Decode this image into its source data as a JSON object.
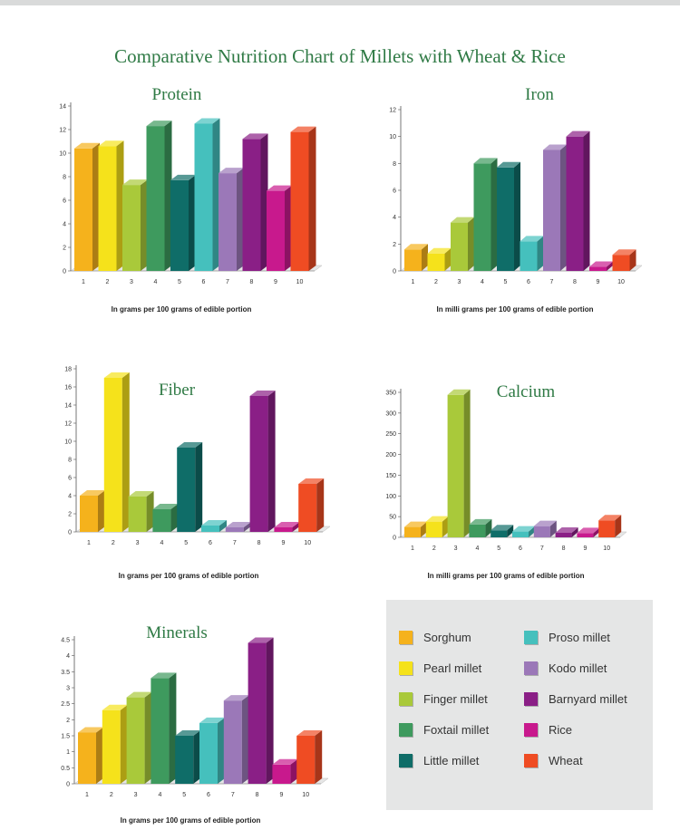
{
  "title": "Comparative Nutrition Chart of Millets with Wheat & Rice",
  "colors": [
    "#f5b21c",
    "#f5e21b",
    "#a9c93a",
    "#3e9a5e",
    "#0f6d68",
    "#45c0bd",
    "#9b78b8",
    "#8a1f86",
    "#c8198d",
    "#ef4c23"
  ],
  "legend": [
    {
      "label": "Sorghum",
      "color": "#f5b21c"
    },
    {
      "label": "Pearl millet",
      "color": "#f5e21b"
    },
    {
      "label": "Finger millet",
      "color": "#a9c93a"
    },
    {
      "label": "Foxtail millet",
      "color": "#3e9a5e"
    },
    {
      "label": "Little millet",
      "color": "#0f6d68"
    },
    {
      "label": "Proso millet",
      "color": "#45c0bd"
    },
    {
      "label": "Kodo millet",
      "color": "#9b78b8"
    },
    {
      "label": "Barnyard millet",
      "color": "#8a1f86"
    },
    {
      "label": "Rice",
      "color": "#c8198d"
    },
    {
      "label": "Wheat",
      "color": "#ef4c23"
    }
  ],
  "chart_data": [
    {
      "id": "protein",
      "type": "bar",
      "title": "Protein",
      "categories": [
        "1",
        "2",
        "3",
        "4",
        "5",
        "6",
        "7",
        "8",
        "9",
        "10"
      ],
      "values": [
        10.4,
        10.6,
        7.3,
        12.3,
        7.7,
        12.5,
        8.3,
        11.2,
        6.8,
        11.8
      ],
      "ylim": [
        0,
        14
      ],
      "yticks": [
        0,
        2,
        4,
        6,
        8,
        10,
        12,
        14
      ],
      "xlabel": "In grams per 100 grams of edible portion",
      "ylabel": ""
    },
    {
      "id": "iron",
      "type": "bar",
      "title": "Iron",
      "categories": [
        "1",
        "2",
        "3",
        "4",
        "5",
        "6",
        "7",
        "8",
        "9",
        "10"
      ],
      "values": [
        1.6,
        1.3,
        3.6,
        8.0,
        7.7,
        2.2,
        9.0,
        10.0,
        0.3,
        1.2
      ],
      "ylim": [
        0,
        12
      ],
      "yticks": [
        0,
        2,
        4,
        6,
        8,
        10,
        12
      ],
      "xlabel": "In milli grams per 100 grams of edible portion",
      "ylabel": ""
    },
    {
      "id": "fiber",
      "type": "bar",
      "title": "Fiber",
      "categories": [
        "1",
        "2",
        "3",
        "4",
        "5",
        "6",
        "7",
        "8",
        "9",
        "10"
      ],
      "values": [
        4.0,
        17.0,
        3.9,
        2.5,
        9.3,
        0.7,
        0.5,
        15.0,
        0.5,
        5.3
      ],
      "ylim": [
        0,
        18
      ],
      "yticks": [
        0,
        2,
        4,
        6,
        8,
        10,
        12,
        14,
        16,
        18
      ],
      "xlabel": "In grams per 100 grams of edible portion",
      "ylabel": ""
    },
    {
      "id": "calcium",
      "type": "bar",
      "title": "Calcium",
      "categories": [
        "1",
        "2",
        "3",
        "4",
        "5",
        "6",
        "7",
        "8",
        "9",
        "10"
      ],
      "values": [
        25,
        38,
        344,
        31,
        17,
        14,
        27,
        11,
        10,
        41
      ],
      "ylim": [
        0,
        350
      ],
      "yticks": [
        0,
        50,
        100,
        150,
        200,
        250,
        300,
        350
      ],
      "xlabel": "In milli grams per 100 grams of edible portion",
      "ylabel": ""
    },
    {
      "id": "minerals",
      "type": "bar",
      "title": "Minerals",
      "categories": [
        "1",
        "2",
        "3",
        "4",
        "5",
        "6",
        "7",
        "8",
        "9",
        "10"
      ],
      "values": [
        1.6,
        2.3,
        2.7,
        3.3,
        1.5,
        1.9,
        2.6,
        4.4,
        0.6,
        1.5
      ],
      "ylim": [
        0,
        4.5
      ],
      "yticks": [
        0,
        0.5,
        1,
        1.5,
        2,
        2.5,
        3,
        3.5,
        4,
        4.5
      ],
      "xlabel": "In grams per 100 grams of edible portion",
      "ylabel": ""
    }
  ]
}
